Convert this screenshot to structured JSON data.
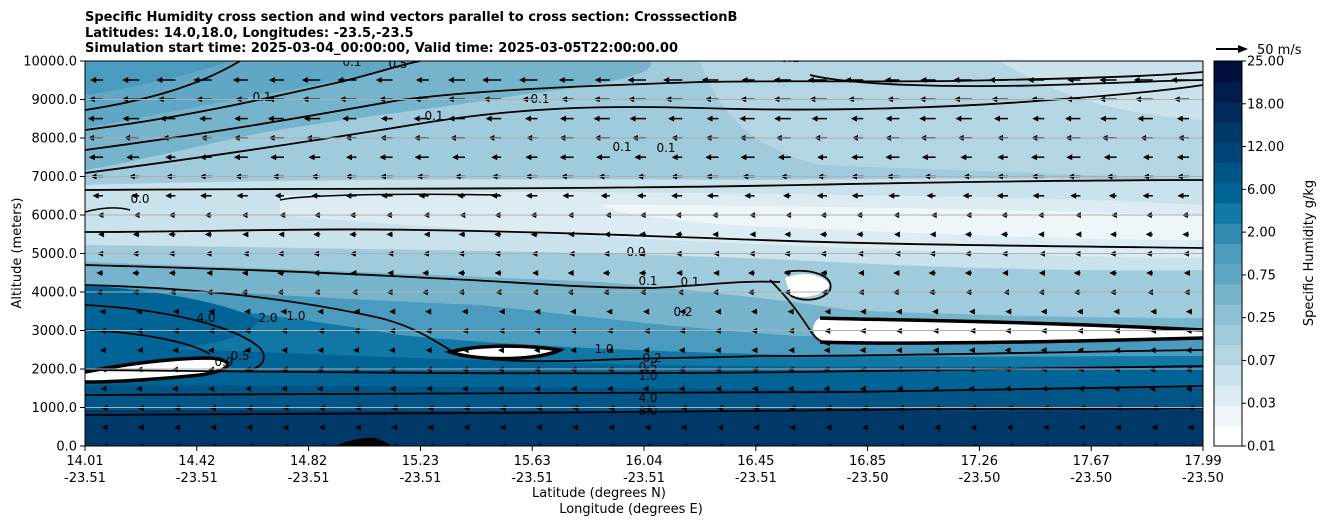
{
  "chart_data": {
    "type": "contour",
    "title_lines": [
      "Specific Humidity cross section and wind vectors parallel to cross section: CrosssectionB",
      "Latitudes: 14.0,18.0, Longitudes: -23.5,-23.5",
      "Simulation start time: 2025-03-04_00:00:00, Valid time: 2025-03-05T22:00:00.00"
    ],
    "ylabel": "Altitude (meters)",
    "xlabel_lat": "Latitude (degrees N)",
    "xlabel_lon": "Longitude (degrees E)",
    "ylim": [
      0,
      10000
    ],
    "yticks": [
      "0.0",
      "1000.0",
      "2000.0",
      "3000.0",
      "4000.0",
      "5000.0",
      "6000.0",
      "7000.0",
      "8000.0",
      "9000.0",
      "10000.0"
    ],
    "xticks_lat": [
      "14.01",
      "14.42",
      "14.82",
      "15.23",
      "15.63",
      "16.04",
      "16.45",
      "16.85",
      "17.26",
      "17.67",
      "17.99"
    ],
    "xticks_lon": [
      "-23.51",
      "-23.51",
      "-23.51",
      "-23.51",
      "-23.51",
      "-23.51",
      "-23.51",
      "-23.50",
      "-23.50",
      "-23.50",
      "-23.50"
    ],
    "grid": "horizontal",
    "colorbar": {
      "label": "Specific Humidity g/kg",
      "ticks": [
        "0.01",
        "0.03",
        "0.07",
        "0.25",
        "0.75",
        "2.00",
        "6.00",
        "12.00",
        "18.00",
        "25.00"
      ],
      "colors": [
        "#ffffff",
        "#eef6f9",
        "#dcecf2",
        "#c9e2eb",
        "#b4d6e3",
        "#a0cbdc",
        "#8cc0d4",
        "#76b4cc",
        "#5fa7c4",
        "#4a9bbd",
        "#2f89b1",
        "#1177a5",
        "#006596",
        "#005586",
        "#004577",
        "#003867",
        "#002a5a",
        "#001c4c",
        "#000e3d"
      ]
    },
    "wind_key": {
      "label": "50 m/s"
    },
    "contour_labels": [
      "0.1",
      "0.1",
      "0.1",
      "0.1",
      "0.1",
      "0.0",
      "0.0",
      "0.1",
      "0.1",
      "0.2",
      "0.2",
      "0.5",
      "1.0",
      "4.0",
      "8.0",
      "1.0",
      "2.0",
      "4.0",
      "0.5",
      "0.9",
      "0.1",
      "0.5",
      "0.1",
      "1.0"
    ]
  }
}
